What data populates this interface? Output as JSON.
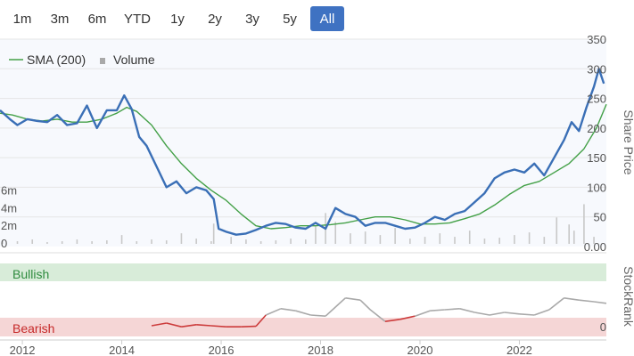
{
  "range_selector": {
    "buttons": [
      "1m",
      "3m",
      "6m",
      "YTD",
      "1y",
      "2y",
      "3y",
      "5y",
      "All"
    ],
    "active": "All"
  },
  "colors": {
    "price": "#3a6fb6",
    "sma": "#43a047",
    "volume": "#c8c8c8",
    "bullish_band": "#d8ecd9",
    "bearish_band": "#f5d6d6",
    "bullish_text": "#2e8b3e",
    "bearish_text": "#c62828",
    "stockrank_low": "#cc3b3b",
    "stockrank_high": "#a9a9a9",
    "active_button": "#3f72c2"
  },
  "chart_data": {
    "type": "line",
    "x_ticks": [
      "2012",
      "2014",
      "2016",
      "2018",
      "2020",
      "2022"
    ],
    "x_range": [
      2011.55,
      2023.75
    ],
    "price_axis": {
      "title": "Share Price",
      "ticks": [
        "350",
        "300",
        "250",
        "200",
        "150",
        "100",
        "50",
        "0.00"
      ],
      "ylim": [
        0,
        350
      ]
    },
    "volume_axis": {
      "ticks": [
        "6m",
        "4m",
        "2m",
        "0"
      ],
      "ylim": [
        0,
        10
      ]
    },
    "stockrank_axis": {
      "title": "StockRank",
      "ticks": [
        "0"
      ]
    },
    "legend": [
      "SMA (200)",
      "Volume"
    ],
    "bands": {
      "bullish_label": "Bullish",
      "bearish_label": "Bearish"
    },
    "series": [
      {
        "name": "Price",
        "x": [
          2011.55,
          2011.75,
          2011.9,
          2012.1,
          2012.3,
          2012.5,
          2012.7,
          2012.9,
          2013.1,
          2013.3,
          2013.5,
          2013.7,
          2013.9,
          2014.05,
          2014.2,
          2014.35,
          2014.5,
          2014.7,
          2014.9,
          2015.1,
          2015.3,
          2015.5,
          2015.7,
          2015.85,
          2015.95,
          2016.1,
          2016.3,
          2016.5,
          2016.7,
          2016.9,
          2017.1,
          2017.3,
          2017.5,
          2017.7,
          2017.9,
          2018.1,
          2018.3,
          2018.5,
          2018.7,
          2018.9,
          2019.1,
          2019.3,
          2019.5,
          2019.7,
          2019.9,
          2020.1,
          2020.3,
          2020.5,
          2020.7,
          2020.9,
          2021.1,
          2021.3,
          2021.5,
          2021.7,
          2021.9,
          2022.1,
          2022.3,
          2022.5,
          2022.7,
          2022.9,
          2023.05,
          2023.2,
          2023.35,
          2023.5,
          2023.6,
          2023.7
        ],
        "values": [
          230,
          215,
          205,
          215,
          212,
          210,
          222,
          205,
          208,
          238,
          200,
          230,
          230,
          255,
          232,
          185,
          170,
          135,
          100,
          110,
          90,
          100,
          95,
          80,
          30,
          25,
          20,
          22,
          28,
          35,
          40,
          38,
          32,
          30,
          40,
          30,
          65,
          55,
          50,
          35,
          40,
          40,
          35,
          30,
          32,
          40,
          50,
          45,
          55,
          60,
          75,
          90,
          115,
          125,
          130,
          125,
          140,
          120,
          150,
          180,
          210,
          195,
          235,
          270,
          300,
          275
        ]
      },
      {
        "name": "SMA (200)",
        "x": [
          2011.55,
          2011.8,
          2012.1,
          2012.4,
          2012.7,
          2013.0,
          2013.3,
          2013.6,
          2013.9,
          2014.1,
          2014.3,
          2014.6,
          2014.9,
          2015.2,
          2015.5,
          2015.8,
          2016.1,
          2016.4,
          2016.7,
          2017.0,
          2017.3,
          2017.6,
          2017.9,
          2018.2,
          2018.5,
          2018.8,
          2019.1,
          2019.4,
          2019.7,
          2020.0,
          2020.3,
          2020.6,
          2020.9,
          2021.2,
          2021.5,
          2021.8,
          2022.1,
          2022.4,
          2022.7,
          2023.0,
          2023.3,
          2023.55,
          2023.75
        ],
        "values": [
          225,
          222,
          215,
          212,
          215,
          210,
          210,
          215,
          225,
          235,
          228,
          205,
          170,
          140,
          115,
          95,
          78,
          55,
          35,
          30,
          32,
          35,
          35,
          37,
          40,
          45,
          50,
          50,
          45,
          38,
          38,
          40,
          47,
          55,
          70,
          88,
          103,
          110,
          125,
          140,
          165,
          200,
          240
        ]
      }
    ],
    "volume": {
      "x": [
        2011.6,
        2011.9,
        2012.2,
        2012.5,
        2012.8,
        2013.1,
        2013.4,
        2013.7,
        2014.0,
        2014.3,
        2014.6,
        2014.9,
        2015.2,
        2015.5,
        2015.8,
        2015.85,
        2016.2,
        2016.5,
        2016.8,
        2017.1,
        2017.4,
        2017.7,
        2017.9,
        2018.1,
        2018.3,
        2018.6,
        2018.9,
        2019.2,
        2019.5,
        2019.8,
        2020.1,
        2020.4,
        2020.7,
        2021.0,
        2021.3,
        2021.6,
        2021.9,
        2022.2,
        2022.5,
        2022.75,
        2023.0,
        2023.1,
        2023.3,
        2023.5
      ],
      "values": [
        0.4,
        0.3,
        0.5,
        0.2,
        0.3,
        0.5,
        0.3,
        0.4,
        1.0,
        0.3,
        0.5,
        0.4,
        1.2,
        0.6,
        0.3,
        2.3,
        0.8,
        0.5,
        0.3,
        0.4,
        0.6,
        0.5,
        2.0,
        3.5,
        2.5,
        1.2,
        1.4,
        1.0,
        1.8,
        0.6,
        0.8,
        1.2,
        0.8,
        1.5,
        0.6,
        0.7,
        1.0,
        1.3,
        0.8,
        3.0,
        2.2,
        1.5,
        4.5,
        0.8
      ]
    },
    "stockrank": {
      "x": [
        2014.6,
        2014.9,
        2015.2,
        2015.5,
        2015.8,
        2016.1,
        2016.4,
        2016.7,
        2016.9,
        2017.2,
        2017.5,
        2017.8,
        2018.1,
        2018.3,
        2018.5,
        2018.8,
        2019.0,
        2019.3,
        2019.6,
        2019.9,
        2020.2,
        2020.5,
        2020.8,
        2021.1,
        2021.4,
        2021.7,
        2022.0,
        2022.3,
        2022.6,
        2022.9,
        2023.2,
        2023.5,
        2023.75
      ],
      "values": [
        10,
        15,
        8,
        12,
        10,
        8,
        8,
        9,
        30,
        42,
        38,
        30,
        28,
        45,
        62,
        58,
        40,
        18,
        22,
        28,
        38,
        40,
        42,
        35,
        30,
        35,
        32,
        30,
        40,
        62,
        58,
        55,
        52
      ]
    }
  }
}
